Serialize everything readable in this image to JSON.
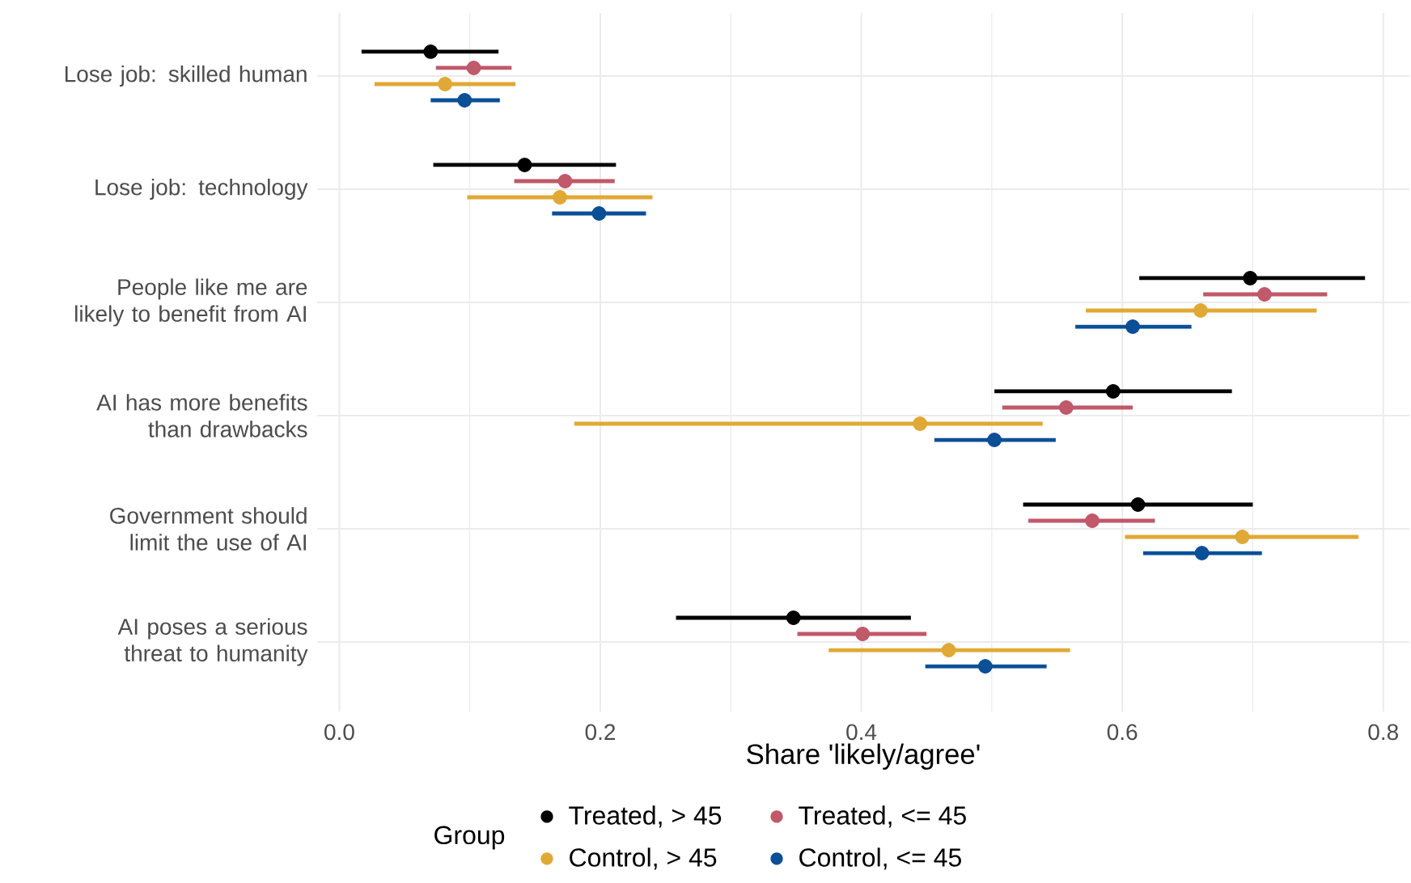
{
  "chart_data": {
    "type": "scatter",
    "orientation": "horizontal",
    "xlabel": "Share 'likely/agree'",
    "legend_title": "Group",
    "legend": "bottom",
    "grid": true,
    "marker": "circle",
    "xlim": [
      -0.017,
      0.82
    ],
    "xticks": [
      {
        "value": 0,
        "label": "0.0"
      },
      0.2,
      0.4,
      0.6,
      0.8
    ],
    "categories": [
      "Lose job: skilled human",
      "Lose job: technology",
      "People like me are likely to benefit from AI",
      "AI has more benefits than drawbacks",
      "Government should limit the use of AI",
      "AI poses a serious threat to humanity"
    ],
    "series": [
      {
        "name": "Treated, > 45",
        "color": "#000000",
        "values": [
          0.07,
          0.142,
          0.698,
          0.593,
          0.612,
          0.348
        ],
        "errors": [
          [
            0.017,
            0.122
          ],
          [
            0.072,
            0.212
          ],
          [
            0.613,
            0.786
          ],
          [
            0.502,
            0.684
          ],
          [
            0.524,
            0.7
          ],
          [
            0.258,
            0.438
          ]
        ]
      },
      {
        "name": "Treated, <= 45",
        "color": "#c0596a",
        "values": [
          0.103,
          0.173,
          0.709,
          0.557,
          0.577,
          0.401
        ],
        "errors": [
          [
            0.074,
            0.132
          ],
          [
            0.134,
            0.211
          ],
          [
            0.662,
            0.757
          ],
          [
            0.508,
            0.608
          ],
          [
            0.528,
            0.625
          ],
          [
            0.351,
            0.45
          ]
        ]
      },
      {
        "name": "Control, > 45",
        "color": "#e0a935",
        "values": [
          0.081,
          0.169,
          0.66,
          0.445,
          0.692,
          0.467
        ],
        "errors": [
          [
            0.027,
            0.135
          ],
          [
            0.098,
            0.24
          ],
          [
            0.572,
            0.749
          ],
          [
            0.18,
            0.539
          ],
          [
            0.602,
            0.781
          ],
          [
            0.375,
            0.56
          ]
        ]
      },
      {
        "name": "Control, <= 45",
        "color": "#0b4f96",
        "values": [
          0.096,
          0.199,
          0.608,
          0.502,
          0.661,
          0.495
        ],
        "errors": [
          [
            0.07,
            0.123
          ],
          [
            0.163,
            0.235
          ],
          [
            0.564,
            0.653
          ],
          [
            0.456,
            0.549
          ],
          [
            0.616,
            0.707
          ],
          [
            0.449,
            0.542
          ]
        ]
      }
    ]
  }
}
